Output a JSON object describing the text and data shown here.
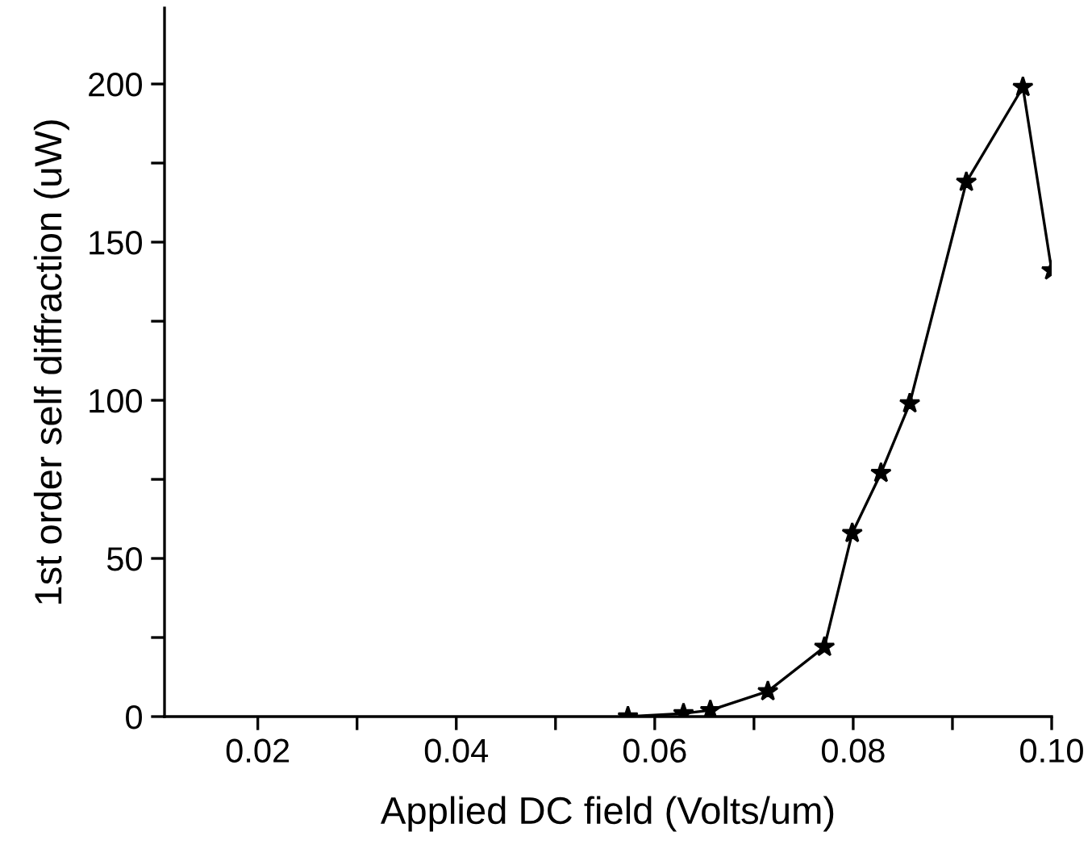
{
  "chart_data": {
    "type": "line",
    "xlabel": "Applied DC field (Volts/um)",
    "ylabel": "1st order self diffraction (uW)",
    "x": [
      0.0573,
      0.0629,
      0.0656,
      0.0714,
      0.0771,
      0.0799,
      0.0828,
      0.0857,
      0.0914,
      0.0971,
      0.1
    ],
    "series": [
      {
        "color": "#000000",
        "values": [
          0,
          1,
          2,
          8,
          22,
          58,
          77,
          99,
          169,
          199,
          141
        ]
      }
    ],
    "marker": "star",
    "line_style": "solid",
    "grid": false,
    "legend": false,
    "xlim": [
      0.0106,
      0.1
    ],
    "ylim": [
      0,
      224
    ],
    "xticks": [
      {
        "value": 0.02,
        "label": "0.02"
      },
      {
        "value": 0.03,
        "label": null
      },
      {
        "value": 0.04,
        "label": "0.04"
      },
      {
        "value": 0.05,
        "label": null
      },
      {
        "value": 0.06,
        "label": "0.06"
      },
      {
        "value": 0.07,
        "label": null
      },
      {
        "value": 0.08,
        "label": "0.08"
      },
      {
        "value": 0.09,
        "label": null
      },
      {
        "value": 0.1,
        "label": "0.10"
      }
    ],
    "yticks": [
      0,
      {
        "value": 25,
        "label": null
      },
      50,
      {
        "value": 75,
        "label": null
      },
      100,
      {
        "value": 125,
        "label": null
      },
      150,
      {
        "value": 175,
        "label": null
      },
      200
    ]
  }
}
